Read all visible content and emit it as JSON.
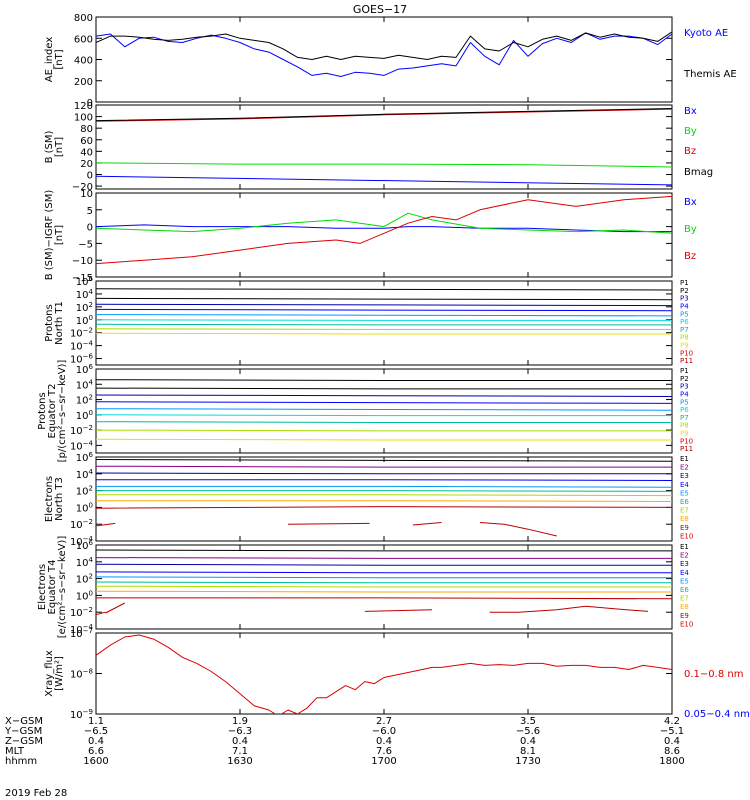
{
  "title": "GOES−17",
  "date_label": "2019 Feb 28",
  "colors": {
    "black": "#000000",
    "blue": "#0000ff",
    "green": "#00dd00",
    "red": "#dd0000",
    "lightblue": "#0099ff",
    "darkblue": "#0000aa",
    "cyan": "#00dddd",
    "teal": "#00bb99",
    "yellowgreen": "#aadd00",
    "yellow": "#eedd00",
    "orange": "#ffaa00",
    "darkorange": "#ee7700",
    "darkred": "#bb0000",
    "darkgreen": "#008800",
    "purple": "#880088"
  },
  "chart_data": [
    {
      "type": "line",
      "ylabel": "AE_index [nT]",
      "ylim": [
        0,
        800
      ],
      "yticks": [
        "0",
        "200",
        "400",
        "600",
        "800"
      ],
      "series": [
        {
          "name": "Kyoto AE",
          "color": "blue",
          "x": [
            0,
            3,
            6,
            9,
            12,
            15,
            18,
            21,
            24,
            27,
            30,
            33,
            36,
            39,
            42,
            45,
            48,
            51,
            54,
            57,
            60,
            63,
            66,
            69,
            72,
            75,
            78,
            81,
            84,
            87,
            90,
            93,
            96,
            99,
            102,
            105,
            108,
            111,
            114,
            117,
            120
          ],
          "y": [
            620,
            640,
            520,
            600,
            610,
            570,
            560,
            600,
            630,
            600,
            560,
            500,
            470,
            400,
            330,
            250,
            270,
            240,
            280,
            270,
            250,
            310,
            320,
            340,
            360,
            340,
            560,
            430,
            350,
            580,
            430,
            550,
            600,
            560,
            650,
            590,
            620,
            620,
            600,
            540,
            640
          ]
        },
        {
          "name": "Themis AE",
          "color": "black",
          "x": [
            0,
            3,
            6,
            9,
            12,
            15,
            18,
            21,
            24,
            27,
            30,
            33,
            36,
            39,
            42,
            45,
            48,
            51,
            54,
            57,
            60,
            63,
            66,
            69,
            72,
            75,
            78,
            81,
            84,
            87,
            90,
            93,
            96,
            99,
            102,
            105,
            108,
            111,
            114,
            117,
            120
          ],
          "y": [
            560,
            620,
            620,
            610,
            590,
            580,
            590,
            610,
            620,
            640,
            600,
            580,
            560,
            500,
            420,
            400,
            430,
            400,
            430,
            420,
            410,
            440,
            420,
            400,
            430,
            420,
            620,
            500,
            480,
            560,
            520,
            590,
            620,
            580,
            650,
            610,
            640,
            610,
            600,
            570,
            660
          ]
        }
      ]
    },
    {
      "type": "line",
      "ylabel": "B (SM) [nT]",
      "ylim": [
        -25,
        120
      ],
      "yticks": [
        "−20",
        "0",
        "20",
        "40",
        "60",
        "80",
        "100",
        "120"
      ],
      "series": [
        {
          "name": "Bx",
          "color": "blue",
          "x": [
            0,
            120
          ],
          "y": [
            -3,
            -18
          ]
        },
        {
          "name": "By",
          "color": "green",
          "x": [
            0,
            30,
            60,
            90,
            120
          ],
          "y": [
            20,
            18,
            18,
            17,
            13
          ]
        },
        {
          "name": "Bz",
          "color": "red",
          "x": [
            0,
            30,
            60,
            90,
            120
          ],
          "y": [
            92,
            96,
            103,
            108,
            113
          ]
        },
        {
          "name": "Bmag",
          "color": "black",
          "x": [
            0,
            30,
            60,
            90,
            120
          ],
          "y": [
            93,
            97,
            104,
            109,
            114
          ]
        }
      ]
    },
    {
      "type": "line",
      "ylabel": "B (SM)−IGRF (SM) [nT]",
      "ylim": [
        -15,
        10
      ],
      "yticks": [
        "−15",
        "−10",
        "−5",
        "0",
        "5",
        "10"
      ],
      "series": [
        {
          "name": "Bx",
          "color": "blue",
          "x": [
            0,
            10,
            20,
            30,
            40,
            50,
            60,
            65,
            70,
            80,
            90,
            100,
            110,
            120
          ],
          "y": [
            0,
            0.5,
            0,
            0,
            0,
            -0.5,
            -0.5,
            0,
            0,
            -0.5,
            -0.5,
            -1,
            -1.5,
            -1.5
          ]
        },
        {
          "name": "By",
          "color": "green",
          "x": [
            0,
            10,
            20,
            30,
            40,
            50,
            55,
            60,
            65,
            70,
            80,
            90,
            100,
            110,
            120
          ],
          "y": [
            -0.5,
            -1,
            -1.5,
            -0.5,
            1,
            2,
            1,
            0,
            4,
            2,
            -0.5,
            -1,
            -1.5,
            -1,
            -2
          ]
        },
        {
          "name": "Bz",
          "color": "red",
          "x": [
            0,
            10,
            20,
            30,
            40,
            50,
            55,
            60,
            65,
            70,
            75,
            80,
            90,
            100,
            110,
            120
          ],
          "y": [
            -11,
            -10,
            -9,
            -7,
            -5,
            -4,
            -5,
            -2,
            1,
            3,
            2,
            5,
            8,
            6,
            8,
            9
          ]
        }
      ]
    },
    {
      "type": "line",
      "ylabel": "Protons North T1",
      "log": true,
      "ylim": [
        -7,
        6
      ],
      "yticks": [
        "10^6",
        "10^4",
        "10^2",
        "10^0",
        "10^−2",
        "10^−4",
        "10^−6"
      ],
      "legend": [
        "P1",
        "P2",
        "P3",
        "P4",
        "P5",
        "P6",
        "P7",
        "P8",
        "P9",
        "P10",
        "P11"
      ],
      "series": [
        {
          "name": "P1",
          "color": "black",
          "levels": [
            4.8,
            4.7,
            4.6
          ]
        },
        {
          "name": "P2",
          "color": "black",
          "levels": [
            3.3,
            3.2,
            3.1
          ]
        },
        {
          "name": "P3",
          "color": "darkblue",
          "levels": [
            2.4,
            2.3,
            2.2
          ]
        },
        {
          "name": "P4",
          "color": "blue",
          "levels": [
            1.6,
            1.5,
            1.4
          ]
        },
        {
          "name": "P5",
          "color": "lightblue",
          "levels": [
            0.8,
            0.7,
            0.6
          ]
        },
        {
          "name": "P6",
          "color": "cyan",
          "levels": [
            0.0,
            -0.1,
            -0.1
          ]
        },
        {
          "name": "P7",
          "color": "teal",
          "levels": [
            -0.7,
            -0.8,
            -0.8
          ]
        },
        {
          "name": "P8",
          "color": "yellowgreen",
          "levels": [
            -1.4,
            -1.5,
            -1.5
          ]
        },
        {
          "name": "P9",
          "color": "yellow",
          "levels": [
            -2.1,
            -2.2,
            -2.2
          ]
        }
      ]
    },
    {
      "type": "line",
      "ylabel": "Protons Equator T2 [p/(cm²−s−sr−keV)]",
      "log": true,
      "ylim": [
        -5,
        6
      ],
      "yticks": [
        "10^6",
        "10^4",
        "10^2",
        "10^0",
        "10^−2",
        "10^−4"
      ],
      "legend": [
        "P1",
        "P2",
        "P3",
        "P4",
        "P5",
        "P6",
        "P7",
        "P8",
        "P9",
        "P10",
        "P11"
      ],
      "series": [
        {
          "name": "P1",
          "color": "black",
          "levels": [
            4.6,
            4.5,
            4.5
          ]
        },
        {
          "name": "P2",
          "color": "black",
          "levels": [
            3.5,
            3.4,
            3.4
          ]
        },
        {
          "name": "P3",
          "color": "darkblue",
          "levels": [
            2.6,
            2.5,
            2.4
          ]
        },
        {
          "name": "P4",
          "color": "blue",
          "levels": [
            1.7,
            1.6,
            1.5
          ]
        },
        {
          "name": "P5",
          "color": "lightblue",
          "levels": [
            0.8,
            0.7,
            0.6
          ]
        },
        {
          "name": "P6",
          "color": "cyan",
          "levels": [
            0.0,
            -0.1,
            -0.1
          ]
        },
        {
          "name": "P7",
          "color": "teal",
          "levels": [
            -0.9,
            -1.0,
            -1.0
          ]
        },
        {
          "name": "P8",
          "color": "yellowgreen",
          "levels": [
            -2.0,
            -2.1,
            -2.1
          ]
        },
        {
          "name": "P9",
          "color": "yellow",
          "levels": [
            -3.2,
            -3.3,
            -3.3
          ]
        }
      ]
    },
    {
      "type": "line",
      "ylabel": "Electrons North T3",
      "log": true,
      "ylim": [
        -4,
        6
      ],
      "yticks": [
        "10^6",
        "10^4",
        "10^2",
        "10^0",
        "10^−2",
        "10^−4"
      ],
      "legend": [
        "E1",
        "E2",
        "E3",
        "E4",
        "E5",
        "E6",
        "E7",
        "E8",
        "E9",
        "E10"
      ],
      "series": [
        {
          "name": "E1",
          "color": "black",
          "levels": [
            5.7,
            5.6,
            5.5
          ]
        },
        {
          "name": "E2",
          "color": "purple",
          "levels": [
            4.9,
            4.8,
            4.8
          ]
        },
        {
          "name": "E3",
          "color": "darkblue",
          "levels": [
            4.1,
            4.0,
            4.0
          ]
        },
        {
          "name": "E4",
          "color": "blue",
          "levels": [
            3.3,
            3.3,
            3.2
          ]
        },
        {
          "name": "E5",
          "color": "lightblue",
          "levels": [
            2.5,
            2.5,
            2.4
          ]
        },
        {
          "name": "E6",
          "color": "teal",
          "levels": [
            2.0,
            2.0,
            1.9
          ]
        },
        {
          "name": "E7",
          "color": "yellowgreen",
          "levels": [
            1.5,
            1.5,
            1.4
          ]
        },
        {
          "name": "E8",
          "color": "orange",
          "levels": [
            0.8,
            0.8,
            0.7
          ]
        },
        {
          "name": "E9",
          "color": "darkred",
          "levels": [
            -0.1,
            0.1,
            0.0
          ]
        }
      ],
      "segments": [
        {
          "color": "darkred",
          "x": [
            0,
            4
          ],
          "y": [
            -2.2,
            -1.9
          ]
        },
        {
          "color": "darkred",
          "x": [
            40,
            57
          ],
          "y": [
            -2.0,
            -1.9
          ]
        },
        {
          "color": "darkred",
          "x": [
            66,
            72
          ],
          "y": [
            -2.1,
            -1.8
          ]
        },
        {
          "color": "darkred",
          "x": [
            80,
            85,
            90,
            96
          ],
          "y": [
            -1.8,
            -2.0,
            -2.6,
            -3.4
          ]
        }
      ]
    },
    {
      "type": "line",
      "ylabel": "Electrons Equator T4 [e/(cm²−s−sr−keV)]",
      "log": true,
      "ylim": [
        -4,
        6
      ],
      "yticks": [
        "10^6",
        "10^4",
        "10^2",
        "10^0",
        "10^−2",
        "10^−4"
      ],
      "legend": [
        "E1",
        "E2",
        "E3",
        "E4",
        "E5",
        "E6",
        "E7",
        "E8",
        "E9",
        "E10"
      ],
      "series": [
        {
          "name": "E1",
          "color": "black",
          "levels": [
            5.4,
            5.3,
            5.3
          ]
        },
        {
          "name": "E2",
          "color": "purple",
          "levels": [
            4.5,
            4.4,
            4.4
          ]
        },
        {
          "name": "E3",
          "color": "darkblue",
          "levels": [
            3.7,
            3.6,
            3.6
          ]
        },
        {
          "name": "E4",
          "color": "blue",
          "levels": [
            2.8,
            2.7,
            2.7
          ]
        },
        {
          "name": "E5",
          "color": "lightblue",
          "levels": [
            2.2,
            2.1,
            2.1
          ]
        },
        {
          "name": "E6",
          "color": "teal",
          "levels": [
            1.6,
            1.5,
            1.5
          ]
        },
        {
          "name": "E7",
          "color": "yellowgreen",
          "levels": [
            1.1,
            1.0,
            1.0
          ]
        },
        {
          "name": "E8",
          "color": "orange",
          "levels": [
            0.5,
            0.4,
            0.4
          ]
        },
        {
          "name": "E9",
          "color": "darkred",
          "levels": [
            -0.3,
            -0.3,
            -0.4
          ]
        }
      ],
      "segments": [
        {
          "color": "darkred",
          "x": [
            0,
            2
          ],
          "y": [
            -2.3,
            -2.0
          ]
        },
        {
          "color": "darkred",
          "x": [
            2,
            6
          ],
          "y": [
            -2.1,
            -0.9
          ]
        },
        {
          "color": "darkred",
          "x": [
            56,
            70
          ],
          "y": [
            -1.9,
            -1.7
          ]
        },
        {
          "color": "darkred",
          "x": [
            82,
            88,
            96,
            102,
            108,
            115
          ],
          "y": [
            -2.0,
            -2.0,
            -1.7,
            -1.3,
            -1.6,
            -1.9
          ]
        }
      ]
    },
    {
      "type": "line",
      "ylabel": "Xray_flux [W/m²]",
      "log": true,
      "ylim": [
        -9,
        -7
      ],
      "yticks": [
        "10^−7",
        "10^−8",
        "10^−9"
      ],
      "series": [
        {
          "name": "0.1−0.8 nm",
          "color": "red",
          "x": [
            0,
            3,
            6,
            9,
            12,
            15,
            18,
            21,
            24,
            27,
            30,
            33,
            36,
            38,
            40,
            42,
            44,
            46,
            48,
            50,
            52,
            54,
            56,
            58,
            60,
            62,
            64,
            66,
            68,
            70,
            72,
            75,
            78,
            81,
            84,
            87,
            90,
            93,
            96,
            99,
            102,
            105,
            108,
            111,
            114,
            117,
            120
          ],
          "y": [
            -7.55,
            -7.3,
            -7.1,
            -7.05,
            -7.15,
            -7.35,
            -7.6,
            -7.75,
            -7.95,
            -8.2,
            -8.5,
            -8.8,
            -8.9,
            -9.05,
            -8.9,
            -9.0,
            -8.85,
            -8.6,
            -8.6,
            -8.45,
            -8.3,
            -8.4,
            -8.2,
            -8.25,
            -8.1,
            -8.05,
            -8.0,
            -7.95,
            -7.9,
            -7.85,
            -7.85,
            -7.8,
            -7.75,
            -7.8,
            -7.78,
            -7.8,
            -7.75,
            -7.75,
            -7.82,
            -7.8,
            -7.8,
            -7.85,
            -7.85,
            -7.9,
            -7.8,
            -7.85,
            -7.9
          ]
        },
        {
          "name": "0.05−0.4 nm",
          "color": "blue",
          "x": [],
          "y": []
        }
      ]
    }
  ],
  "xaxis": {
    "rows": [
      {
        "label": "X−GSM",
        "values": [
          "1.1",
          "1.9",
          "2.7",
          "3.5",
          "4.2"
        ]
      },
      {
        "label": "Y−GSM",
        "values": [
          "−6.5",
          "−6.3",
          "−6.0",
          "−5.6",
          "−5.1"
        ]
      },
      {
        "label": "Z−GSM",
        "values": [
          "0.4",
          "0.4",
          "0.4",
          "0.4",
          "0.4"
        ]
      },
      {
        "label": "MLT",
        "values": [
          "6.6",
          "7.1",
          "7.6",
          "8.1",
          "8.6"
        ]
      },
      {
        "label": "hhmm",
        "values": [
          "1600",
          "1630",
          "1700",
          "1730",
          "1800"
        ]
      }
    ],
    "range": [
      0,
      120
    ],
    "ticks": [
      0,
      30,
      60,
      90,
      120
    ]
  }
}
